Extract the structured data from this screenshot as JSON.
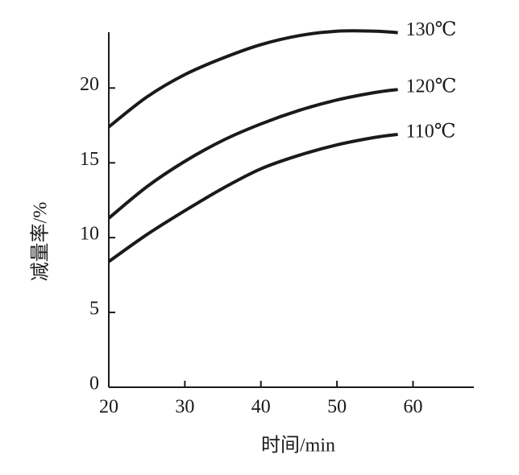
{
  "chart_data": {
    "type": "line",
    "x_label": "时间/min",
    "y_label": "减量率/%",
    "x": [
      20,
      25,
      30,
      35,
      40,
      45,
      50,
      55,
      58
    ],
    "series": [
      {
        "name": "130℃",
        "color": "#1a1a1a",
        "values": [
          17.4,
          19.4,
          20.9,
          22.0,
          22.9,
          23.5,
          23.8,
          23.8,
          23.7
        ]
      },
      {
        "name": "120℃",
        "color": "#1a1a1a",
        "values": [
          11.3,
          13.4,
          15.1,
          16.5,
          17.6,
          18.5,
          19.2,
          19.7,
          19.9
        ]
      },
      {
        "name": "110℃",
        "color": "#1a1a1a",
        "values": [
          8.4,
          10.2,
          11.8,
          13.3,
          14.6,
          15.5,
          16.2,
          16.7,
          16.9
        ]
      }
    ],
    "xlim": [
      20,
      68
    ],
    "ylim": [
      0,
      24
    ],
    "xticks": [
      20,
      30,
      40,
      50,
      60
    ],
    "yticks": [
      0,
      5,
      10,
      15,
      20
    ]
  }
}
